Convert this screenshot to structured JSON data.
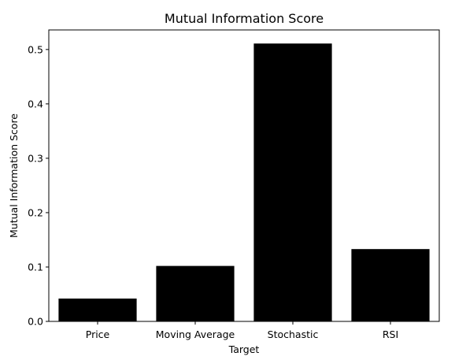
{
  "chart_data": {
    "type": "bar",
    "title": "Mutual Information Score",
    "xlabel": "Target",
    "ylabel": "Mutual Information Score",
    "categories": [
      "Price",
      "Moving Average",
      "Stochastic",
      "RSI"
    ],
    "values": [
      0.042,
      0.102,
      0.511,
      0.133
    ],
    "ylim": [
      0,
      0.536
    ],
    "yticks": [
      0.0,
      0.1,
      0.2,
      0.3,
      0.4,
      0.5
    ],
    "ytick_labels": [
      "0.0",
      "0.1",
      "0.2",
      "0.3",
      "0.4",
      "0.5"
    ],
    "bar_color": "#000000",
    "grid": false,
    "legend": "none"
  }
}
